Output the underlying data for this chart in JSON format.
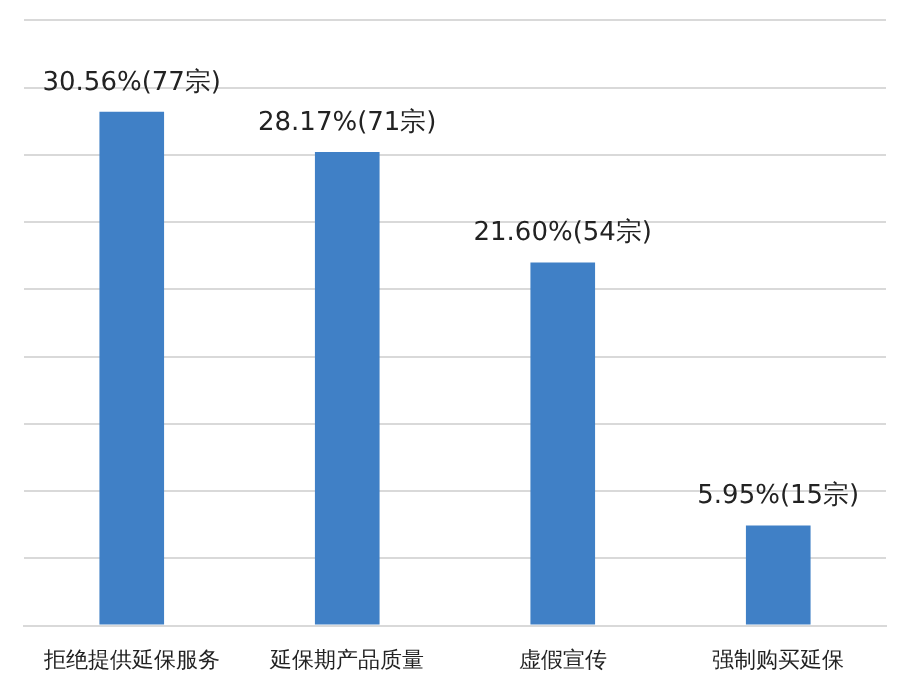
{
  "chart_data": {
    "type": "bar",
    "categories": [
      "拒绝提供延保服务",
      "延保期产品质量",
      "虚假宣传",
      "强制购买延保"
    ],
    "values": [
      30.56,
      28.17,
      21.6,
      5.95
    ],
    "value_labels": [
      "30.56%(77宗)",
      "28.17%(71宗)",
      "21.60%(54宗)",
      "5.95%(15宗)"
    ],
    "color": "#4080c6",
    "ylim": [
      0,
      36
    ],
    "yticks": [
      {
        "value": 0,
        "label": null
      },
      {
        "value": 4,
        "label": null
      },
      {
        "value": 8,
        "label": null
      },
      {
        "value": 12,
        "label": null
      },
      {
        "value": 16,
        "label": null
      },
      {
        "value": 20,
        "label": null
      },
      {
        "value": 24,
        "label": null
      },
      {
        "value": 28,
        "label": null
      },
      {
        "value": 32,
        "label": null
      },
      {
        "value": 36,
        "label": null
      }
    ],
    "grid": "y",
    "legend": false
  }
}
